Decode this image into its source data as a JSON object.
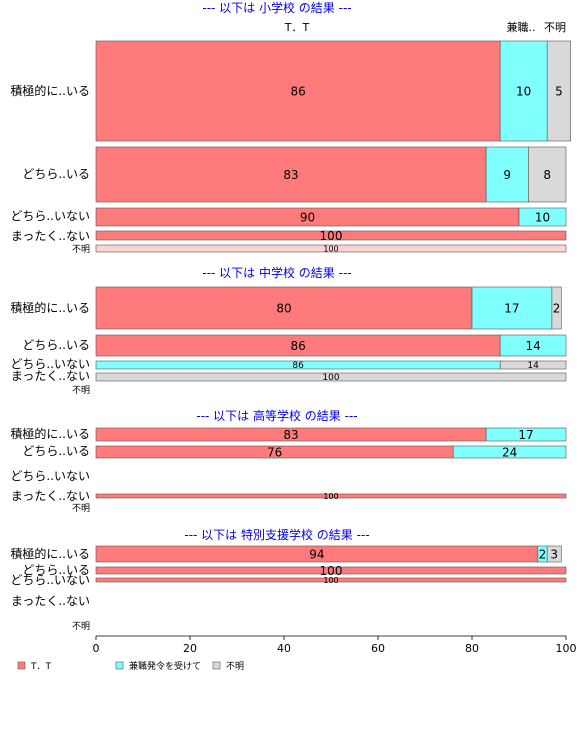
{
  "colors": {
    "T．T": "#ff7b7b",
    "兼職発令を受けて": "#80ffff",
    "不明": "#d9d9d9",
    "title": "#0000ee",
    "faint_red": "#ffd2d2"
  },
  "column_headers": [
    "T．T",
    "兼職..",
    "不明"
  ],
  "legend": [
    "T．T",
    "兼職発令を受けて",
    "不明"
  ],
  "chart_data": {
    "type": "bar",
    "orientation": "horizontal",
    "stacked": true,
    "xlim": [
      0,
      100
    ],
    "xticks": [
      0,
      20,
      40,
      60,
      80,
      100
    ],
    "legend_position": "bottom",
    "series_names": [
      "T．T",
      "兼職発令を受けて",
      "不明"
    ],
    "panels": [
      {
        "title": "--- 以下は 小学校 の結果 ---",
        "rows": [
          {
            "label": "積極的に..いる",
            "values": [
              86,
              10,
              5
            ]
          },
          {
            "label": "どちら..いる",
            "values": [
              83,
              9,
              8
            ]
          },
          {
            "label": "どちら..いない",
            "values": [
              90,
              10,
              0
            ]
          },
          {
            "label": "まったく..ない",
            "values": [
              100,
              0,
              0
            ]
          },
          {
            "label": "不明",
            "values": [
              100,
              0,
              0
            ],
            "faint": true
          }
        ]
      },
      {
        "title": "--- 以下は 中学校 の結果 ---",
        "rows": [
          {
            "label": "積極的に..いる",
            "values": [
              80,
              17,
              2
            ]
          },
          {
            "label": "どちら..いる",
            "values": [
              86,
              14,
              0
            ]
          },
          {
            "label": "どちら..いない",
            "values": [
              0,
              86,
              14
            ]
          },
          {
            "label": "まったく..ない",
            "values": [
              0,
              0,
              100
            ]
          },
          {
            "label": "不明",
            "values": []
          }
        ]
      },
      {
        "title": "--- 以下は 高等学校 の結果 ---",
        "rows": [
          {
            "label": "積極的に..いる",
            "values": [
              83,
              17,
              0
            ]
          },
          {
            "label": "どちら..いる",
            "values": [
              76,
              24,
              0
            ]
          },
          {
            "label": "どちら..いない",
            "values": []
          },
          {
            "label": "まったく..ない",
            "values": [
              100,
              0,
              0
            ]
          },
          {
            "label": "不明",
            "values": []
          }
        ]
      },
      {
        "title": "--- 以下は 特別支援学校 の結果 ---",
        "rows": [
          {
            "label": "積極的に..いる",
            "values": [
              94,
              2,
              3
            ]
          },
          {
            "label": "どちら..いる",
            "values": [
              100,
              0,
              0
            ]
          },
          {
            "label": "どちら..いない",
            "values": [
              100,
              0,
              0
            ]
          },
          {
            "label": "まったく..ない",
            "values": []
          },
          {
            "label": "不明",
            "values": []
          }
        ]
      }
    ]
  }
}
